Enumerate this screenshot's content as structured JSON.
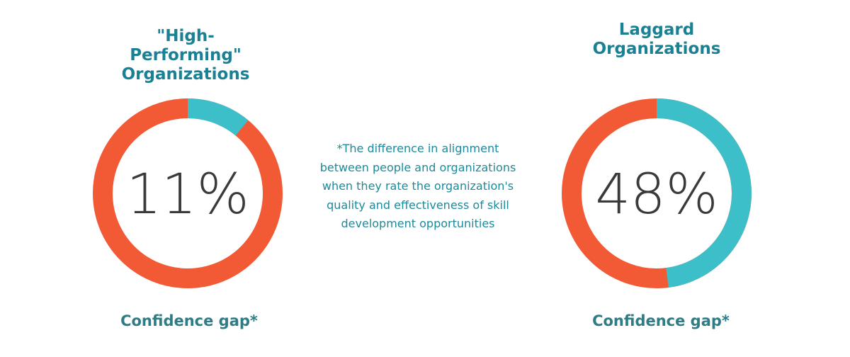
{
  "chart_data": [
    {
      "type": "donut",
      "title": "\"High-Performing\" Organizations",
      "values": [
        11
      ],
      "value_labels": [
        "11%"
      ],
      "color": "#3dbfca",
      "track_color": "#f15a35",
      "caption": "Confidence gap*"
    },
    {
      "type": "donut",
      "title": "Laggard Organizations",
      "values": [
        48
      ],
      "value_labels": [
        "48%"
      ],
      "color": "#3dbfca",
      "track_color": "#f15a35",
      "caption": "Confidence gap*"
    }
  ],
  "note": "*The difference in alignment between people and organizations when they rate the organization's quality and effectiveness of skill development opportunities"
}
